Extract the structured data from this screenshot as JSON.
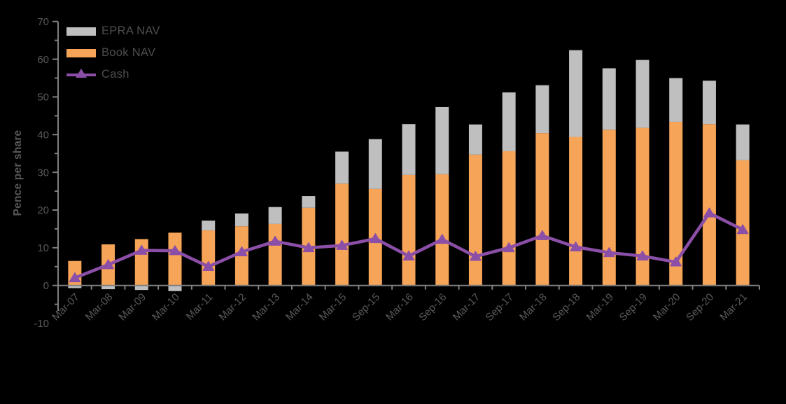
{
  "figure": {
    "background": "#000000",
    "axis_color": "#7F7F7F",
    "text_color": "#595959"
  },
  "legend": {
    "items": [
      {
        "label": "EPRA NAV",
        "color": "#BFBFBF",
        "swatch": "bar"
      },
      {
        "label": "Book NAV",
        "color": "#F6A457",
        "swatch": "bar"
      },
      {
        "label": "Cash",
        "color": "#8C4FA8",
        "swatch": "line-triangle"
      }
    ]
  },
  "chart_data": {
    "type": "bar",
    "subtype": "stacked-bar-with-line-overlay",
    "title": "",
    "xlabel": "",
    "ylabel": "Pence per share",
    "ylim": [
      -10,
      70
    ],
    "ytick_step": 10,
    "ytick_labels": [
      "-10",
      "0",
      "10",
      "20",
      "30",
      "40",
      "50",
      "60",
      "70"
    ],
    "grid": false,
    "legend_position": "top-left-inside",
    "categories": [
      "Mar-07",
      "Mar-08",
      "Mar-09",
      "Mar-10",
      "Mar-11",
      "Mar-12",
      "Mar-13",
      "Mar-14",
      "Mar-15",
      "Sep-15",
      "Mar-16",
      "Sep-16",
      "Mar-17",
      "Sep-17",
      "Mar-18",
      "Sep-18",
      "Mar-19",
      "Sep-19",
      "Mar-20",
      "Sep-20",
      "Mar-21"
    ],
    "series": [
      {
        "name": "Book NAV",
        "type": "bar",
        "color": "#F6A457",
        "values": [
          6.5,
          10.9,
          12.3,
          14.0,
          14.6,
          15.7,
          16.3,
          20.6,
          27.0,
          25.6,
          29.3,
          29.5,
          34.7,
          35.6,
          40.4,
          39.4,
          41.3,
          41.8,
          43.4,
          42.8,
          33.2
        ]
      },
      {
        "name": "EPRA NAV",
        "type": "bar",
        "note": "stacked segment relative to Book NAV; negative values hang below zero line",
        "color": "#BFBFBF",
        "values": [
          -0.7,
          -1.0,
          -1.2,
          -1.5,
          2.6,
          3.4,
          4.5,
          3.1,
          8.5,
          13.2,
          13.5,
          17.8,
          8.0,
          15.6,
          12.7,
          23.0,
          16.3,
          18.0,
          11.6,
          11.5,
          9.5
        ]
      },
      {
        "name": "Cash",
        "type": "line",
        "marker": "triangle-up",
        "color": "#8C4FA8",
        "values": [
          2.0,
          5.5,
          9.3,
          9.2,
          5.0,
          8.9,
          11.7,
          10.0,
          10.6,
          12.4,
          7.8,
          12.2,
          7.7,
          10.0,
          13.2,
          10.2,
          8.7,
          7.8,
          6.2,
          19.2,
          14.8
        ]
      }
    ],
    "epra_nav_totals": [
      5.8,
      9.9,
      11.1,
      12.5,
      17.2,
      19.1,
      20.8,
      23.7,
      35.5,
      38.8,
      42.8,
      47.3,
      42.7,
      51.2,
      53.1,
      62.4,
      57.6,
      59.8,
      55.0,
      54.3,
      42.7
    ]
  }
}
